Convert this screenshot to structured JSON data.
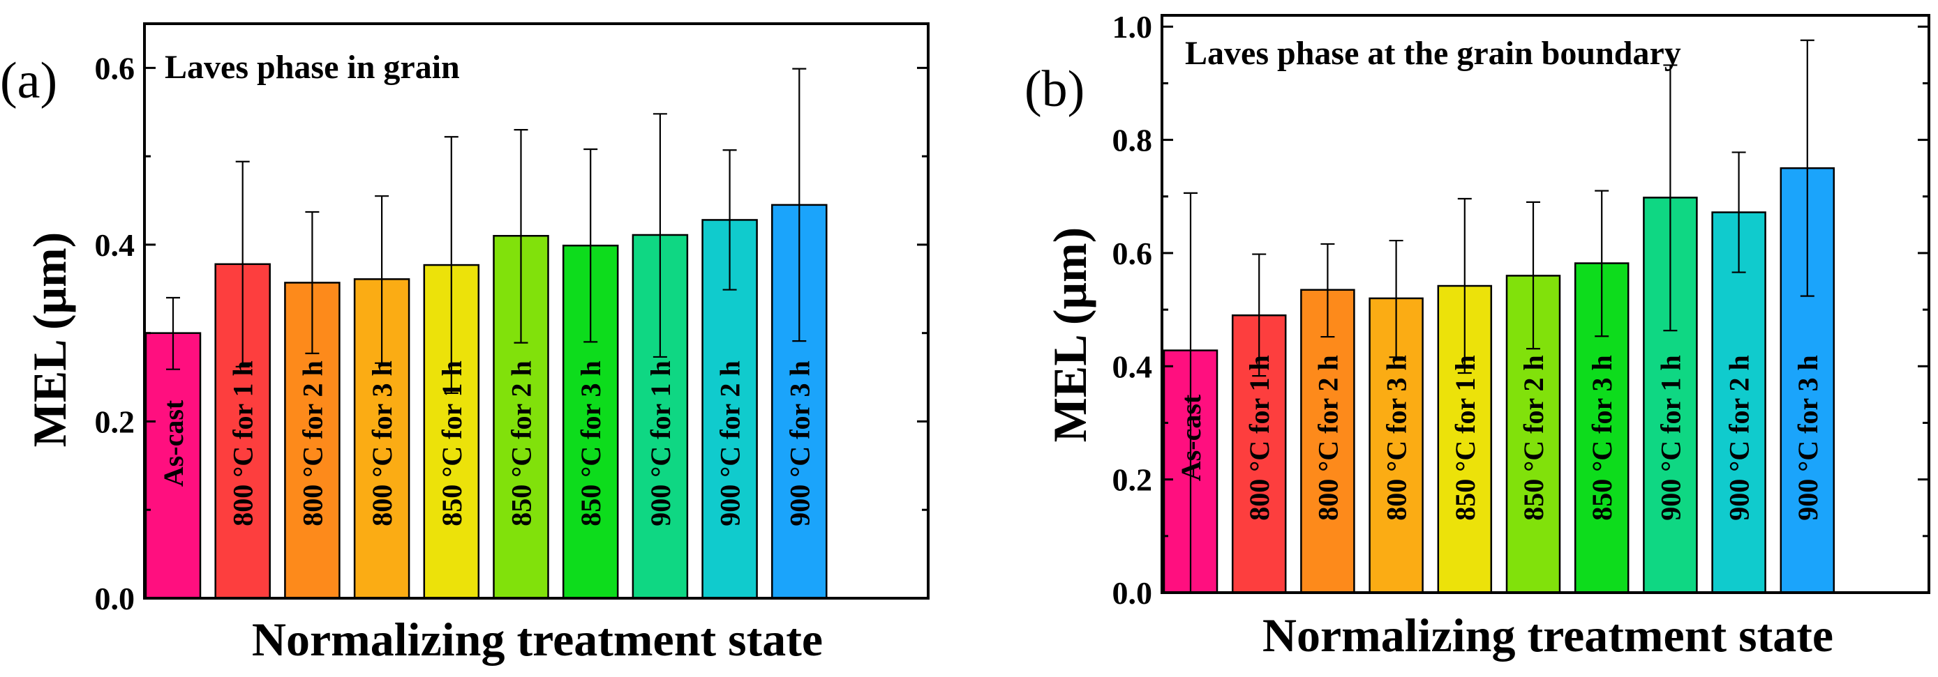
{
  "figure_labels": {
    "panel_a": "(a)",
    "panel_b": "(b)"
  },
  "chart_data": [
    {
      "type": "bar",
      "title": "Laves phase in grain",
      "xlabel": "Normalizing treatment state",
      "ylabel": "MEL (μm)",
      "ylim": [
        0,
        0.65
      ],
      "yticks": [
        "0.0",
        "0.2",
        "0.4",
        "0.6"
      ],
      "grid": false,
      "categories": [
        "As-cast",
        "800 °C for 1 h",
        "800 °C for 2 h",
        "800 °C for 3 h",
        "850 °C for 1 h",
        "850 °C for 2 h",
        "850 °C for 3 h",
        "900 °C for 1 h",
        "900 °C for 2 h",
        "900 °C for 3 h"
      ],
      "values": [
        0.3,
        0.378,
        0.357,
        0.361,
        0.377,
        0.41,
        0.399,
        0.411,
        0.428,
        0.445
      ],
      "error_high": [
        0.34,
        0.494,
        0.437,
        0.455,
        0.522,
        0.53,
        0.508,
        0.548,
        0.507,
        0.599
      ],
      "error_low": [
        0.259,
        0.262,
        0.277,
        0.266,
        0.232,
        0.289,
        0.29,
        0.273,
        0.349,
        0.291
      ],
      "colors": [
        "#ff0f7f",
        "#fd3e3e",
        "#fd8a1b",
        "#fbac14",
        "#ece20a",
        "#81e10b",
        "#0ddc1c",
        "#0fd783",
        "#10cbcd",
        "#1ba4fb"
      ]
    },
    {
      "type": "bar",
      "title": "Laves phase at the grain boundary",
      "xlabel": "Normalizing treatment state",
      "ylabel": "MEL (μm)",
      "ylim": [
        0,
        1.02
      ],
      "yticks": [
        "0.0",
        "0.2",
        "0.4",
        "0.6",
        "0.8",
        "1.0"
      ],
      "grid": false,
      "categories": [
        "As-cast",
        "800 °C for 1 h",
        "800 °C for 2 h",
        "800 °C for 3 h",
        "850 °C for 1 h",
        "850 °C for 2 h",
        "850 °C for 3 h",
        "900 °C for 1 h",
        "900 °C for 2 h",
        "900 °C for 3 h"
      ],
      "values": [
        0.428,
        0.49,
        0.535,
        0.52,
        0.542,
        0.56,
        0.582,
        0.698,
        0.672,
        0.75
      ],
      "error_high": [
        0.706,
        0.598,
        0.616,
        0.622,
        0.696,
        0.69,
        0.71,
        0.932,
        0.778,
        0.976
      ],
      "error_low": [
        0.0,
        0.383,
        0.452,
        0.416,
        0.388,
        0.431,
        0.453,
        0.463,
        0.566,
        0.524
      ],
      "colors": [
        "#ff0f7f",
        "#fd3e3e",
        "#fd8a1b",
        "#fbac14",
        "#ece20a",
        "#81e10b",
        "#0ddc1c",
        "#0fd783",
        "#10cbcd",
        "#1ba4fb"
      ]
    }
  ]
}
